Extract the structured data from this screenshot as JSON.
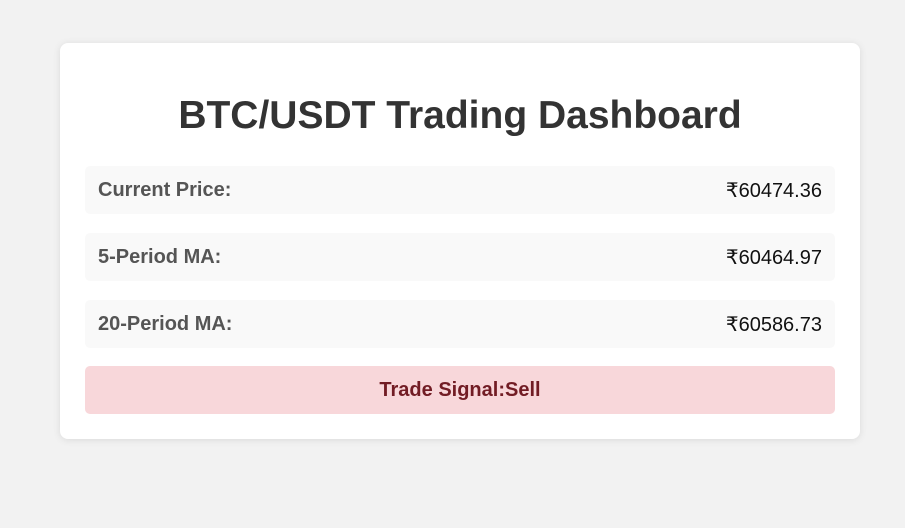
{
  "dashboard": {
    "title": "BTC/USDT Trading Dashboard",
    "rows": [
      {
        "label": "Current Price:",
        "value": "₹60474.36"
      },
      {
        "label": "5-Period MA:",
        "value": "₹60464.97"
      },
      {
        "label": "20-Period MA:",
        "value": "₹60586.73"
      }
    ],
    "signal": {
      "label": "Trade Signal:",
      "value": "Sell",
      "background": "#f8d7da",
      "text_color": "#721c24"
    }
  }
}
